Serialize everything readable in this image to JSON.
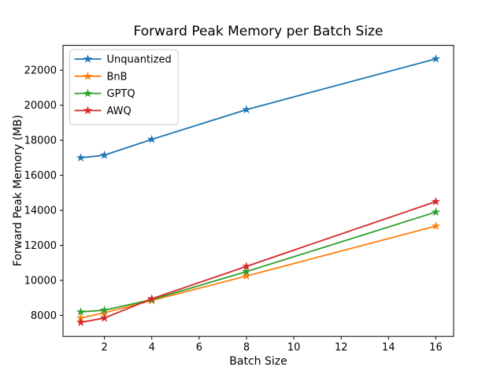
{
  "figure": {
    "title": "Forward Peak Memory per Batch Size",
    "xlabel": "Batch Size",
    "ylabel": "Forward Peak Memory (MB)"
  },
  "chart_data": {
    "type": "line",
    "title": "Forward Peak Memory per Batch Size",
    "xlabel": "Batch Size",
    "ylabel": "Forward Peak Memory (MB)",
    "marker": "star",
    "grid": false,
    "legend_position": "upper-left",
    "x": [
      1,
      2,
      4,
      8,
      16
    ],
    "series": [
      {
        "name": "Unquantized",
        "color": "#1f77b4",
        "values": [
          17000,
          17150,
          18050,
          19750,
          22650
        ]
      },
      {
        "name": "BnB",
        "color": "#ff7f0e",
        "values": [
          7850,
          8150,
          8850,
          10250,
          13100
        ]
      },
      {
        "name": "GPTQ",
        "color": "#2ca02c",
        "values": [
          8200,
          8300,
          8900,
          10500,
          13900
        ]
      },
      {
        "name": "AWQ",
        "color": "#d62728",
        "values": [
          7600,
          7850,
          8950,
          10800,
          14500
        ]
      }
    ],
    "xlim": [
      0.25,
      16.75
    ],
    "ylim": [
      6800,
      23420
    ],
    "xticks": [
      2,
      4,
      6,
      8,
      10,
      12,
      14,
      16
    ],
    "yticks": [
      8000,
      10000,
      12000,
      14000,
      16000,
      18000,
      20000,
      22000
    ],
    "axis_color": "#000000",
    "legend_border_color": "#cccccc"
  }
}
